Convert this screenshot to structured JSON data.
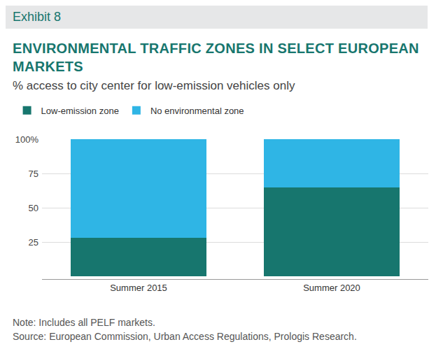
{
  "chart_data": {
    "type": "bar",
    "header": "Exhibit 8",
    "title": "ENVIRONMENTAL TRAFFIC ZONES IN SELECT EUROPEAN MARKETS",
    "subtitle": "% access to city center for low-emission vehicles only",
    "notes": [
      "Note: Includes all PELF markets.",
      "Source: European Commission, Urban Access Regulations, Prologis Research."
    ],
    "categories": [
      "Summer 2015",
      "Summer 2020"
    ],
    "series": [
      {
        "name": "Low-emission zone",
        "color": "#17766e",
        "values": [
          28,
          65
        ]
      },
      {
        "name": "No environmental zone",
        "color": "#2fb5e5",
        "values": [
          72,
          35
        ]
      }
    ],
    "stacked": true,
    "ylim": [
      0,
      100
    ],
    "yticks": [
      25,
      50,
      75,
      {
        "value": 100,
        "label": "100%"
      }
    ],
    "grid": true,
    "legend": "top-left"
  }
}
